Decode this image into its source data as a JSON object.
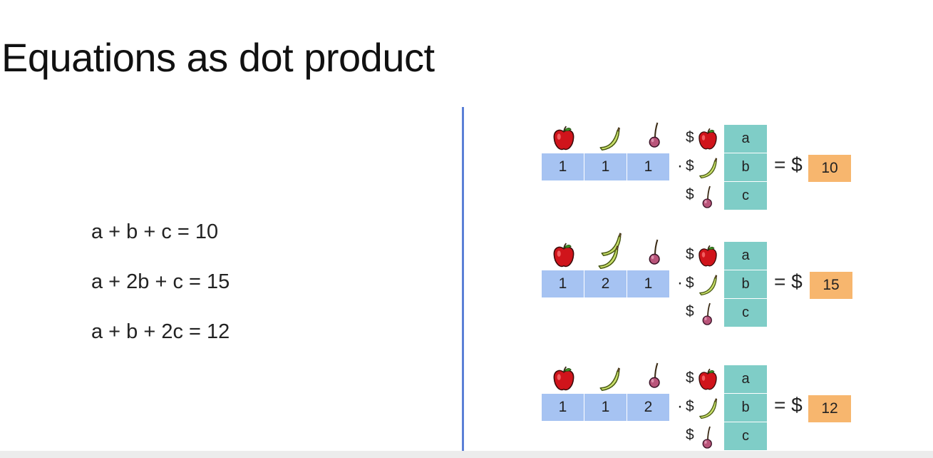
{
  "title": "Equations as dot product",
  "equations": [
    "a + b + c = 10",
    "a + 2b + c = 15",
    "a + b + 2c = 12"
  ],
  "dot_symbol": "·",
  "dollar": "$",
  "equals_label": "= $",
  "fruits": [
    "apple-icon",
    "banana-icon",
    "cherry-icon"
  ],
  "colors": {
    "row_vector": "#a6c3f2",
    "column_vector": "#7fcdc7",
    "result": "#f7b66e",
    "divider": "#5b7fd6"
  },
  "blocks": [
    {
      "counts": [
        "1",
        "1",
        "1"
      ],
      "banana_count": 1,
      "prices": [
        "a",
        "b",
        "c"
      ],
      "result": "10"
    },
    {
      "counts": [
        "1",
        "2",
        "1"
      ],
      "banana_count": 2,
      "prices": [
        "a",
        "b",
        "c"
      ],
      "result": "15"
    },
    {
      "counts": [
        "1",
        "1",
        "2"
      ],
      "banana_count": 1,
      "prices": [
        "a",
        "b",
        "c"
      ],
      "result": "12"
    }
  ]
}
